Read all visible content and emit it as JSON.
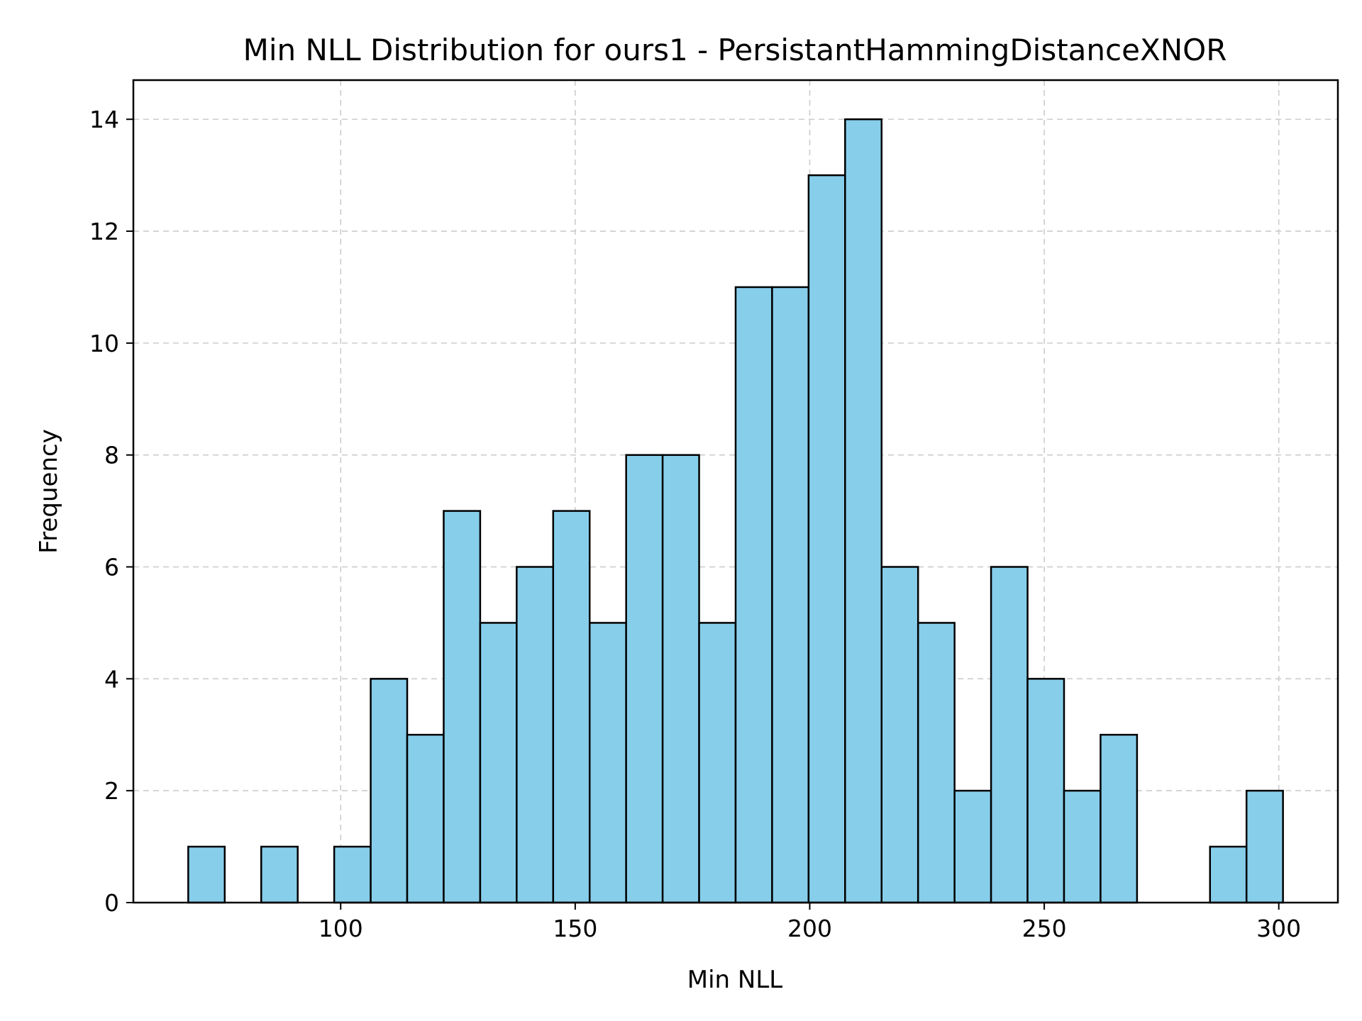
{
  "chart_data": {
    "type": "bar",
    "title": "Min NLL Distribution for ours1 - PersistantHammingDistanceXNOR",
    "xlabel": "Min NLL",
    "ylabel": "Frequency",
    "xlim": [
      55.8,
      312.6
    ],
    "ylim": [
      0,
      14.7
    ],
    "xticks": [
      100,
      150,
      200,
      250,
      300
    ],
    "yticks": [
      0,
      2,
      4,
      6,
      8,
      10,
      12,
      14
    ],
    "bin_start": 67.5,
    "bin_width": 7.78,
    "values": [
      1,
      0,
      1,
      0,
      1,
      4,
      3,
      7,
      5,
      6,
      7,
      5,
      8,
      8,
      5,
      11,
      11,
      13,
      14,
      6,
      5,
      2,
      6,
      4,
      2,
      3,
      0,
      0,
      1,
      2
    ],
    "grid": true,
    "colors": {
      "bar_fill": "#87ceeb",
      "bar_edge": "#000000",
      "grid": "#cccccc"
    }
  }
}
